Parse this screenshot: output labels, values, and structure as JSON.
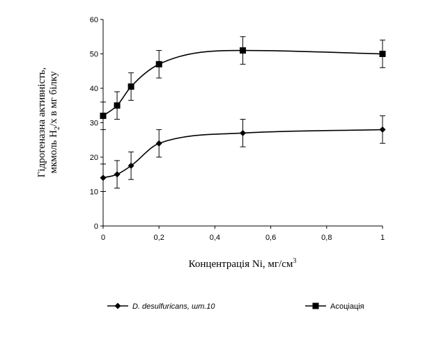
{
  "chart_data": {
    "type": "line",
    "xlabel": "Концентрація Ni, мг/см",
    "xlabel_sup": "3",
    "ylabel_line1": "Гідрогеназна активність,",
    "ylabel_line2_a": "мкмоль H",
    "ylabel_line2_sub": "2",
    "ylabel_line2_b": "/х в мг білку",
    "xlim": [
      0,
      1
    ],
    "ylim": [
      0,
      60
    ],
    "x_ticks": [
      0,
      0.2,
      0.4,
      0.6,
      0.8,
      1
    ],
    "x_tick_labels": [
      "0",
      "0,2",
      "0,4",
      "0,6",
      "0,8",
      "1"
    ],
    "y_ticks": [
      0,
      10,
      20,
      30,
      40,
      50,
      60
    ],
    "y_tick_labels": [
      "0",
      "10",
      "20",
      "30",
      "40",
      "50",
      "60"
    ],
    "grid": false,
    "legend_position": "bottom",
    "series": [
      {
        "name_italic": "D. desulfuricans, шт.10",
        "marker": "diamond",
        "x": [
          0,
          0.05,
          0.1,
          0.2,
          0.5,
          1
        ],
        "y": [
          14,
          15,
          17.5,
          24,
          27,
          28
        ],
        "err": [
          4,
          4,
          4,
          4,
          4,
          4
        ]
      },
      {
        "name": "Асоціація",
        "marker": "square",
        "x": [
          0,
          0.05,
          0.1,
          0.2,
          0.5,
          1
        ],
        "y": [
          32,
          35,
          40.5,
          47,
          51,
          50
        ],
        "err": [
          4,
          4,
          4,
          4,
          4,
          4
        ]
      }
    ]
  }
}
